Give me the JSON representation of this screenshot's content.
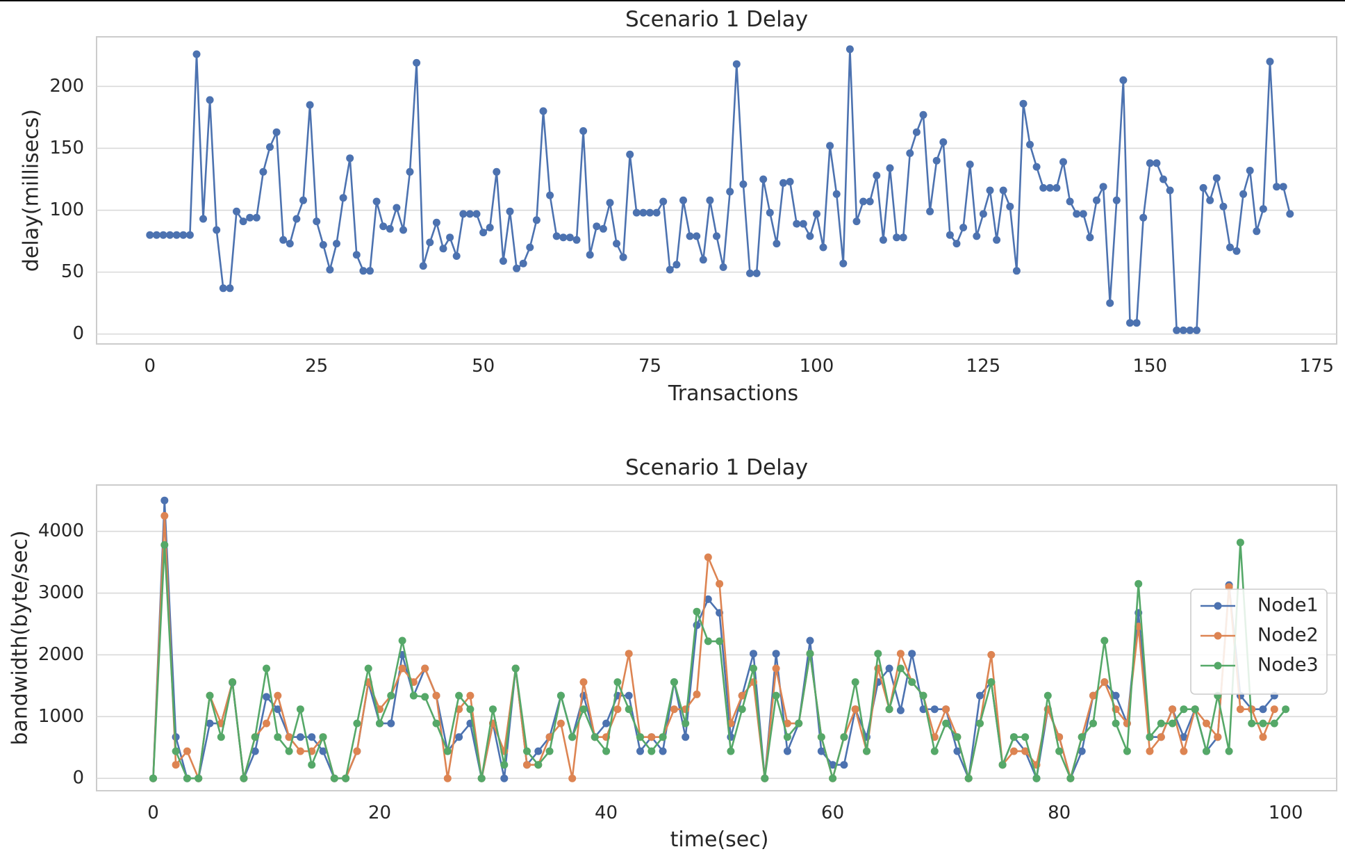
{
  "chart_data": [
    {
      "type": "line",
      "title": "Scenario 1 Delay",
      "xlabel": "Transactions",
      "ylabel": "delay(millisecs)",
      "xlim": [
        -8,
        178
      ],
      "ylim": [
        -8,
        240
      ],
      "xticks": [
        0,
        25,
        50,
        75,
        100,
        125,
        150,
        175
      ],
      "yticks": [
        0,
        50,
        100,
        150,
        200
      ],
      "grid": true,
      "series": [
        {
          "color": "#4c72b0",
          "x_start": 0,
          "values": [
            80,
            80,
            80,
            80,
            80,
            80,
            80,
            226,
            93,
            189,
            84,
            37,
            37,
            99,
            91,
            94,
            94,
            131,
            151,
            163,
            76,
            73,
            93,
            108,
            185,
            91,
            72,
            52,
            73,
            110,
            142,
            64,
            51,
            51,
            107,
            87,
            85,
            102,
            84,
            131,
            219,
            55,
            74,
            90,
            69,
            78,
            63,
            97,
            97,
            97,
            82,
            86,
            131,
            59,
            99,
            53,
            57,
            70,
            92,
            180,
            112,
            79,
            78,
            78,
            76,
            164,
            64,
            87,
            85,
            106,
            73,
            62,
            145,
            98,
            98,
            98,
            98,
            107,
            52,
            56,
            108,
            79,
            79,
            60,
            108,
            79,
            54,
            115,
            218,
            121,
            49,
            49,
            125,
            98,
            73,
            122,
            123,
            89,
            89,
            79,
            97,
            70,
            152,
            113,
            57,
            230,
            91,
            107,
            107,
            128,
            76,
            134,
            78,
            78,
            146,
            163,
            177,
            99,
            140,
            155,
            80,
            73,
            86,
            137,
            79,
            97,
            116,
            76,
            116,
            103,
            51,
            186,
            153,
            135,
            118,
            118,
            118,
            139,
            107,
            97,
            97,
            78,
            108,
            119,
            25,
            108,
            205,
            9,
            9,
            94,
            138,
            138,
            125,
            116,
            3,
            3,
            3,
            3,
            118,
            108,
            126,
            103,
            70,
            67,
            113,
            132,
            83,
            101,
            220,
            119,
            119,
            97
          ]
        }
      ]
    },
    {
      "type": "line",
      "title": "Scenario 1 Delay",
      "xlabel": "time(sec)",
      "ylabel": "bandwidth(byte/sec)",
      "xlim": [
        -5,
        104.5
      ],
      "ylim": [
        -200,
        4750
      ],
      "xticks": [
        0,
        20,
        40,
        60,
        80,
        100
      ],
      "yticks": [
        0,
        1000,
        2000,
        3000,
        4000
      ],
      "grid": true,
      "legend": "right",
      "x_start": 0,
      "series": [
        {
          "name": "Node1",
          "color": "#4c72b0",
          "values": [
            0,
            4500,
            670,
            0,
            0,
            890,
            890,
            1550,
            0,
            440,
            1320,
            1120,
            670,
            670,
            670,
            440,
            0,
            0,
            440,
            1550,
            890,
            890,
            2000,
            1340,
            1780,
            1340,
            440,
            670,
            890,
            0,
            890,
            0,
            1780,
            220,
            440,
            670,
            1340,
            670,
            1340,
            670,
            890,
            1340,
            1340,
            440,
            670,
            440,
            1560,
            670,
            2480,
            2900,
            2680,
            670,
            1340,
            2020,
            0,
            2020,
            440,
            890,
            2230,
            440,
            220,
            220,
            1120,
            670,
            1560,
            1780,
            1100,
            2020,
            1120,
            1120,
            1120,
            440,
            0,
            1340,
            1560,
            220,
            670,
            440,
            0,
            1120,
            670,
            0,
            440,
            1340,
            1560,
            1340,
            890,
            2680,
            670,
            670,
            1120,
            670,
            1120,
            440,
            670,
            3130,
            1340,
            1120,
            1120,
            1340
          ]
        },
        {
          "name": "Node2",
          "color": "#dd8452",
          "values": [
            0,
            4250,
            220,
            440,
            0,
            1340,
            890,
            1560,
            0,
            670,
            890,
            1340,
            670,
            440,
            440,
            670,
            0,
            0,
            440,
            1560,
            1120,
            1340,
            1780,
            1560,
            1780,
            1340,
            0,
            1120,
            1340,
            0,
            890,
            440,
            1780,
            220,
            220,
            670,
            890,
            0,
            1560,
            670,
            670,
            1120,
            2020,
            670,
            670,
            670,
            1120,
            1120,
            1360,
            3580,
            3150,
            890,
            1340,
            1560,
            0,
            1780,
            890,
            890,
            2020,
            670,
            0,
            670,
            1120,
            440,
            1780,
            1120,
            2020,
            1560,
            1340,
            670,
            1120,
            670,
            0,
            890,
            2000,
            220,
            440,
            440,
            220,
            1120,
            670,
            0,
            670,
            1340,
            1560,
            1120,
            890,
            2460,
            440,
            670,
            1120,
            440,
            1120,
            890,
            670,
            3100,
            1120,
            1120,
            670,
            1120
          ]
        },
        {
          "name": "Node3",
          "color": "#55a868",
          "values": [
            0,
            3780,
            440,
            0,
            0,
            1340,
            670,
            1560,
            0,
            670,
            1780,
            670,
            440,
            1120,
            220,
            670,
            0,
            0,
            890,
            1780,
            890,
            1340,
            2230,
            1340,
            1320,
            890,
            440,
            1340,
            1120,
            0,
            1120,
            220,
            1780,
            440,
            220,
            440,
            1340,
            670,
            1120,
            670,
            440,
            1560,
            1120,
            670,
            440,
            670,
            1560,
            890,
            2700,
            2220,
            2220,
            440,
            1120,
            1780,
            0,
            1340,
            670,
            890,
            2020,
            670,
            0,
            670,
            1560,
            440,
            2020,
            1120,
            1780,
            1560,
            1340,
            440,
            890,
            670,
            0,
            890,
            1560,
            220,
            670,
            670,
            0,
            1340,
            440,
            0,
            670,
            890,
            2230,
            890,
            440,
            3150,
            670,
            890,
            890,
            1120,
            1120,
            440,
            1340,
            440,
            3820,
            890,
            890,
            890,
            1120
          ]
        }
      ]
    }
  ]
}
